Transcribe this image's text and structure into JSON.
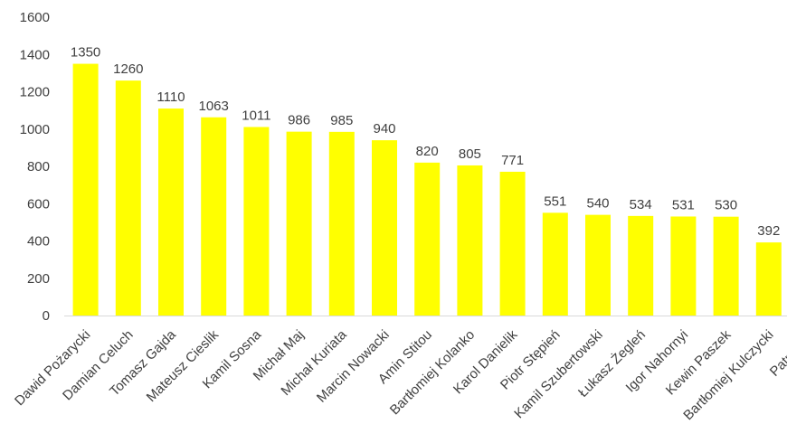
{
  "chart_data": {
    "type": "bar",
    "title": "",
    "xlabel": "",
    "ylabel": "",
    "ylim": [
      0,
      1600
    ],
    "yticks": [
      0,
      200,
      400,
      600,
      800,
      1000,
      1200,
      1400,
      1600
    ],
    "grid": false,
    "legend": "none",
    "bar_color": "#FFFF00",
    "categories": [
      "Dawid Pożarycki",
      "Damian Celuch",
      "Tomasz Gajda",
      "Mateusz Cieslik",
      "Kamil Sosna",
      "Michał Maj",
      "Michał Kuriata",
      "Marcin Nowacki",
      "Amin Stitou",
      "Bartłomiej Kolanko",
      "Karol Danielik",
      "Piotr Stępień",
      "Kamil Szubertowski",
      "Łukasz Żegleń",
      "Igor Nahornyi",
      "Kewin Paszek",
      "Bartłomiej Kulczycki",
      "Patryk Po"
    ],
    "values": [
      1350,
      1260,
      1110,
      1063,
      1011,
      986,
      985,
      940,
      820,
      805,
      771,
      551,
      540,
      534,
      531,
      530,
      392,
      null
    ],
    "data_labels": [
      "1350",
      "1260",
      "1110",
      "1063",
      "1011",
      "986",
      "985",
      "940",
      "820",
      "805",
      "771",
      "551",
      "540",
      "534",
      "531",
      "530",
      "392",
      ""
    ]
  }
}
